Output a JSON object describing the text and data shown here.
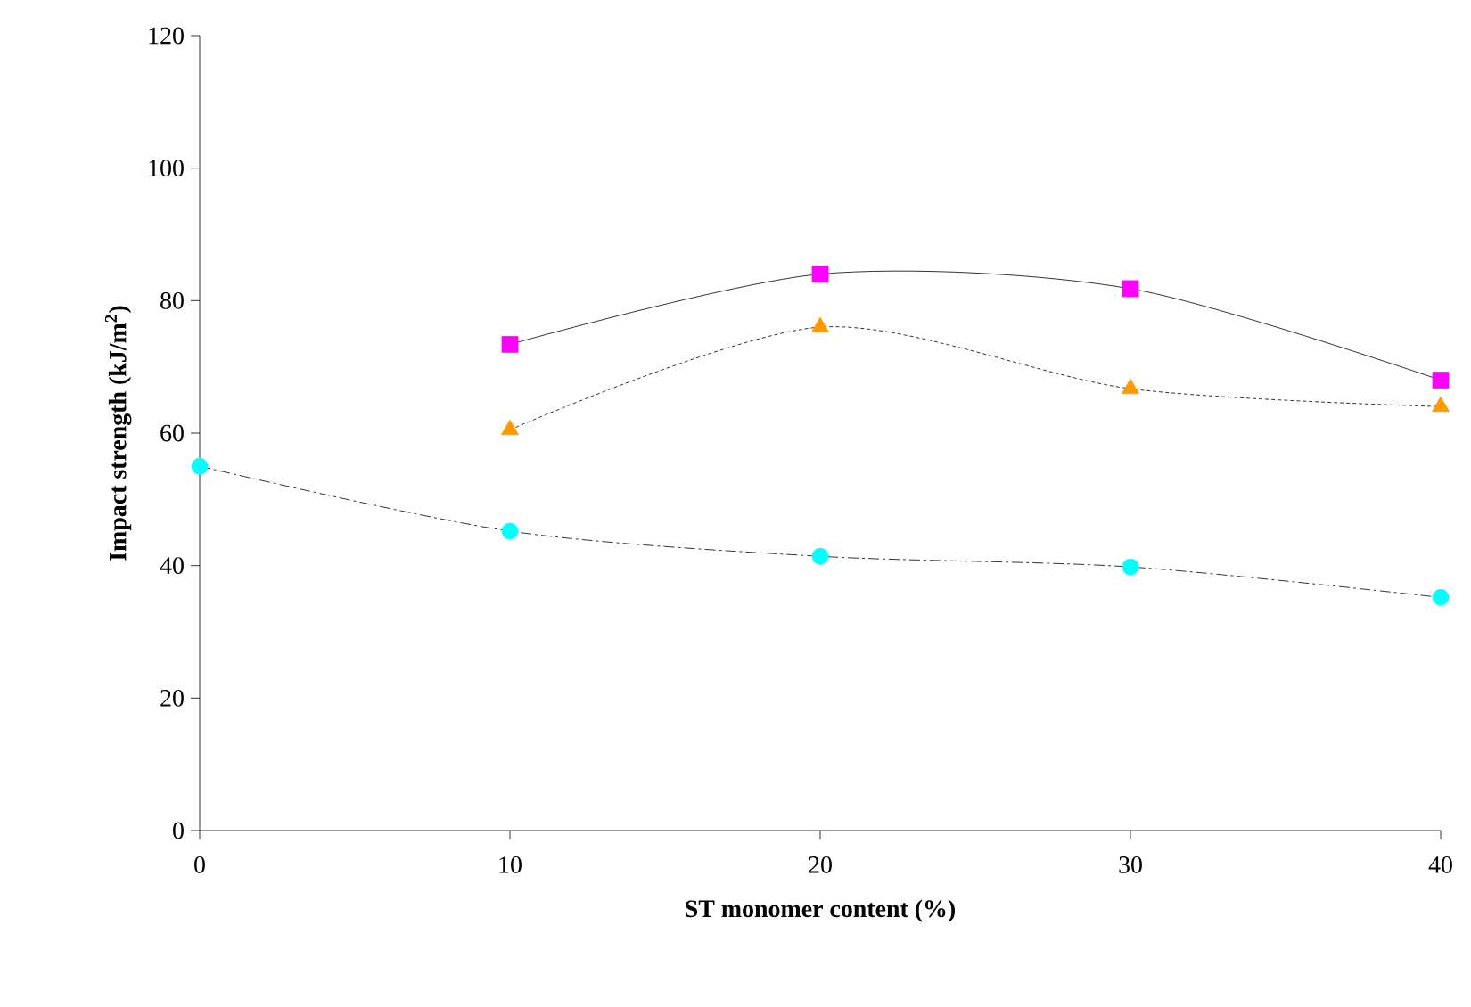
{
  "chart_data": {
    "type": "line",
    "xlabel": "ST monomer content (%)",
    "ylabel": "Impact strength (kJ/m$^{2}$)",
    "xlim": [
      0,
      40
    ],
    "xticks": [
      0,
      10,
      20,
      30,
      40
    ],
    "ylim": [
      0,
      120
    ],
    "yticks": [
      0,
      20,
      40,
      60,
      80,
      100,
      120
    ],
    "grid": false,
    "series": [
      {
        "color": "#ff00ff",
        "marker": "square",
        "line_style": "solid",
        "x": [
          10,
          20,
          30,
          40
        ],
        "values": [
          73.4,
          84,
          81.8,
          68
        ]
      },
      {
        "color": "#ff9900",
        "marker": "triangle",
        "line_style": "dotted",
        "x": [
          10,
          20,
          30,
          40
        ],
        "values": [
          60.5,
          76,
          66.7,
          64
        ]
      },
      {
        "color": "#00ffff",
        "marker": "circle",
        "line_style": "dashed",
        "x": [
          0,
          10,
          20,
          30,
          40
        ],
        "values": [
          55,
          45.2,
          41.4,
          39.8,
          35.2
        ]
      }
    ]
  }
}
